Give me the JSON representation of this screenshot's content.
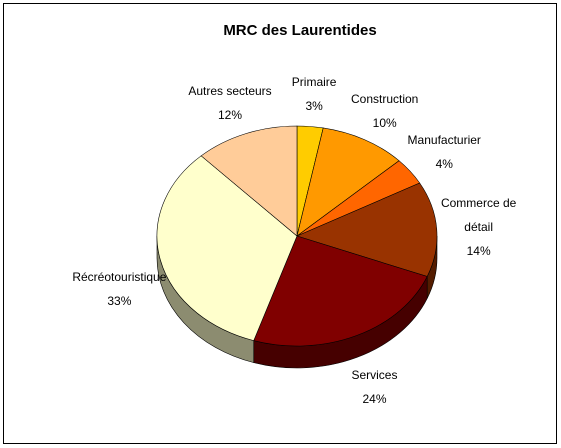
{
  "chart_data": {
    "type": "pie",
    "title": "MRC des Laurentides",
    "categories": [
      "Primaire",
      "Construction",
      "Manufacturier",
      "Commerce de détail",
      "Services",
      "Récréotouristique",
      "Autres secteurs"
    ],
    "values": [
      3,
      10,
      4,
      14,
      24,
      33,
      12
    ],
    "value_labels": [
      "3%",
      "10%",
      "4%",
      "14%",
      "24%",
      "33%",
      "12%"
    ],
    "colors": [
      "#ffcc00",
      "#ff9900",
      "#ff6600",
      "#993300",
      "#800000",
      "#ffffcc",
      "#ffcc99"
    ]
  }
}
